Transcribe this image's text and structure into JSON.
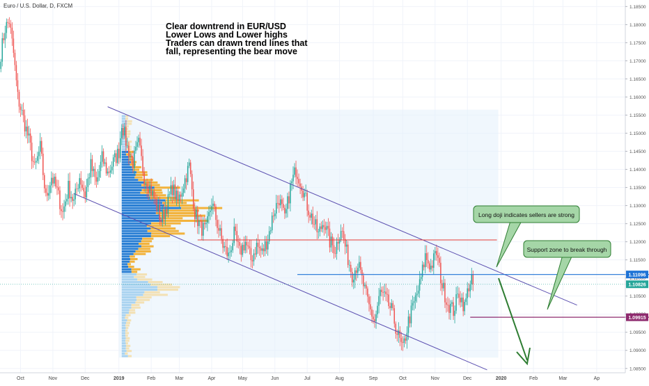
{
  "header": {
    "symbol_title": "Euro / U.S. Dollar, D, FXCM"
  },
  "annotation_text": [
    "Clear downtrend in EUR/USD",
    "Lower Lows and Lower highs",
    "Traders can drawn trend lines that",
    "fall, representing the bear move"
  ],
  "callouts": {
    "doji": "Long doji indicates sellers are strong",
    "support": "Support zone to break through"
  },
  "colors": {
    "up": "#26a69a",
    "down": "#ef5350",
    "channel": "#5b4fb0",
    "resistance": "#e53935",
    "blue_level": "#1e73d6",
    "support": "#8e2a6e",
    "profile_blue": "#2a7fd4",
    "profile_gold": "#f2b33d",
    "callout_fill": "#a5d6a7",
    "callout_border": "#2e7d32",
    "arrow": "#2e7d32"
  },
  "chart_data": {
    "type": "candlestick",
    "symbol": "EURUSD",
    "timeframe": "D",
    "y_ticks": [
      1.085,
      1.09,
      1.095,
      1.1,
      1.105,
      1.11,
      1.115,
      1.12,
      1.125,
      1.13,
      1.135,
      1.14,
      1.145,
      1.15,
      1.155,
      1.16,
      1.165,
      1.17,
      1.175,
      1.18,
      1.185
    ],
    "y_tick_labels": [
      "1.08500",
      "1.09000",
      "1.09500",
      "1.10000",
      "1.10500",
      "1.11000",
      "1.11500",
      "1.12000",
      "1.12500",
      "1.13000",
      "1.13500",
      "1.14000",
      "1.14500",
      "1.15000",
      "1.15500",
      "1.16000",
      "1.16500",
      "1.17000",
      "1.17500",
      "1.18000",
      "1.18500"
    ],
    "ylim": [
      1.0838,
      1.1868
    ],
    "x_tick_labels": [
      "Oct",
      "Nov",
      "Dec",
      "2019",
      "Feb",
      "Mar",
      "Apr",
      "May",
      "Jun",
      "Jul",
      "Aug",
      "Sep",
      "Oct",
      "Nov",
      "Dec",
      "2020",
      "Feb",
      "Mar",
      "Ap"
    ],
    "x_tick_bold": [
      false,
      false,
      false,
      true,
      false,
      false,
      false,
      false,
      false,
      false,
      false,
      false,
      false,
      false,
      false,
      true,
      false,
      false,
      false
    ],
    "x_tick_index": [
      14,
      37,
      60,
      84,
      107,
      127,
      150,
      172,
      195,
      218,
      241,
      265,
      286,
      309,
      332,
      356,
      379,
      400,
      424
    ],
    "price_badges": [
      {
        "label": "1.11096",
        "value": 1.11096,
        "color": "#1e73d6"
      },
      {
        "label": "1.10826",
        "value": 1.10826,
        "color": "#26a69a"
      },
      {
        "label": "1.09915",
        "value": 1.09915,
        "color": "#8e2a6e"
      }
    ],
    "waypoints": [
      [
        0,
        1.172
      ],
      [
        3,
        1.179
      ],
      [
        6,
        1.181
      ],
      [
        9,
        1.172
      ],
      [
        12,
        1.16
      ],
      [
        16,
        1.154
      ],
      [
        20,
        1.148
      ],
      [
        24,
        1.14
      ],
      [
        28,
        1.146
      ],
      [
        32,
        1.132
      ],
      [
        36,
        1.138
      ],
      [
        40,
        1.134
      ],
      [
        44,
        1.128
      ],
      [
        48,
        1.135
      ],
      [
        52,
        1.131
      ],
      [
        56,
        1.138
      ],
      [
        60,
        1.133
      ],
      [
        64,
        1.141
      ],
      [
        68,
        1.136
      ],
      [
        72,
        1.143
      ],
      [
        76,
        1.139
      ],
      [
        80,
        1.142
      ],
      [
        84,
        1.145
      ],
      [
        86,
        1.153
      ],
      [
        90,
        1.146
      ],
      [
        94,
        1.142
      ],
      [
        98,
        1.147
      ],
      [
        102,
        1.138
      ],
      [
        106,
        1.135
      ],
      [
        110,
        1.131
      ],
      [
        114,
        1.126
      ],
      [
        118,
        1.13
      ],
      [
        122,
        1.135
      ],
      [
        126,
        1.131
      ],
      [
        130,
        1.136
      ],
      [
        134,
        1.141
      ],
      [
        138,
        1.128
      ],
      [
        142,
        1.124
      ],
      [
        146,
        1.123
      ],
      [
        150,
        1.131
      ],
      [
        154,
        1.125
      ],
      [
        158,
        1.119
      ],
      [
        162,
        1.116
      ],
      [
        166,
        1.122
      ],
      [
        170,
        1.117
      ],
      [
        174,
        1.12
      ],
      [
        178,
        1.115
      ],
      [
        182,
        1.119
      ],
      [
        186,
        1.117
      ],
      [
        190,
        1.121
      ],
      [
        194,
        1.128
      ],
      [
        198,
        1.132
      ],
      [
        202,
        1.126
      ],
      [
        206,
        1.135
      ],
      [
        210,
        1.14
      ],
      [
        214,
        1.136
      ],
      [
        218,
        1.13
      ],
      [
        222,
        1.126
      ],
      [
        226,
        1.122
      ],
      [
        230,
        1.126
      ],
      [
        234,
        1.12
      ],
      [
        238,
        1.118
      ],
      [
        242,
        1.124
      ],
      [
        246,
        1.117
      ],
      [
        250,
        1.111
      ],
      [
        254,
        1.114
      ],
      [
        258,
        1.108
      ],
      [
        262,
        1.102
      ],
      [
        266,
        1.098
      ],
      [
        270,
        1.106
      ],
      [
        274,
        1.104
      ],
      [
        278,
        1.101
      ],
      [
        282,
        1.095
      ],
      [
        286,
        1.09
      ],
      [
        290,
        1.098
      ],
      [
        294,
        1.103
      ],
      [
        298,
        1.108
      ],
      [
        302,
        1.116
      ],
      [
        306,
        1.113
      ],
      [
        310,
        1.117
      ],
      [
        314,
        1.108
      ],
      [
        318,
        1.103
      ],
      [
        322,
        1.101
      ],
      [
        326,
        1.106
      ],
      [
        330,
        1.102
      ],
      [
        333,
        1.108
      ],
      [
        336,
        1.111
      ]
    ]
  }
}
